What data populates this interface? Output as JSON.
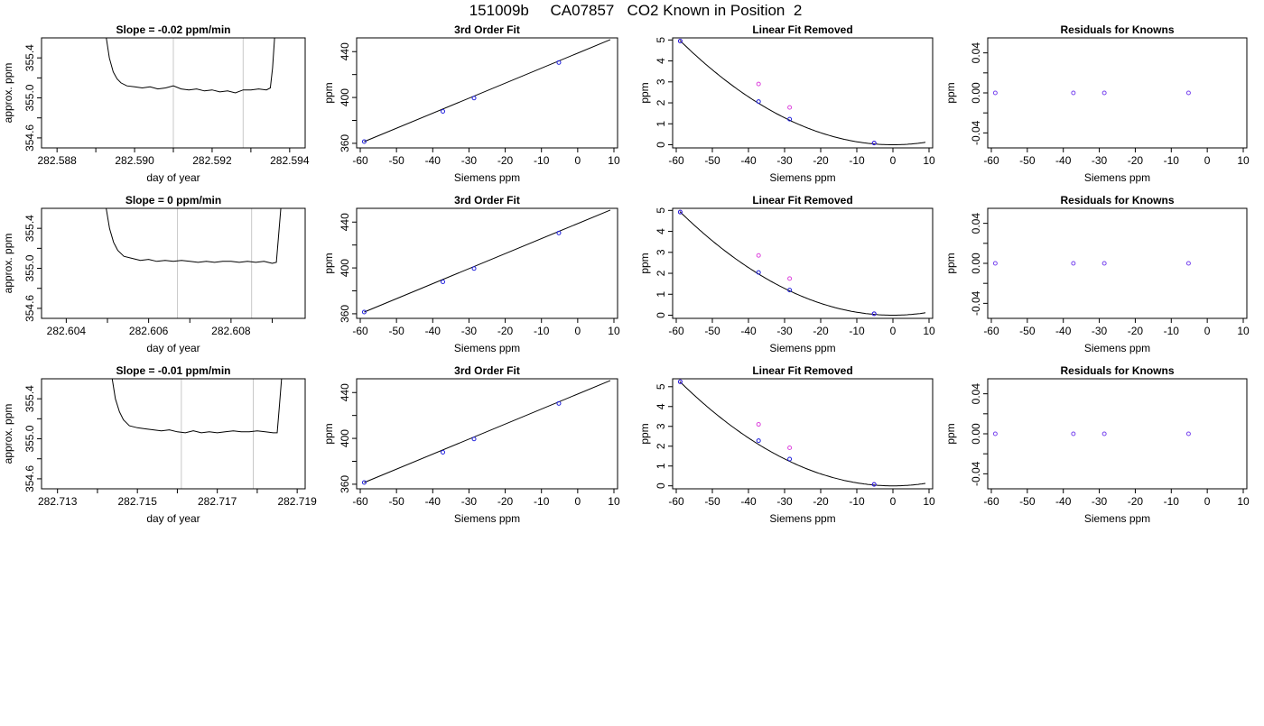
{
  "figure": {
    "title": "151009b     CA07857   CO2 Known in Position  2"
  },
  "style": {
    "axis_color": "#000000",
    "vline_color": "#c8c8c8",
    "point_blue": "#2222dd",
    "point_magenta": "#dd44dd"
  },
  "panel_titles": {
    "fit": "3rd Order Fit",
    "linear": "Linear Fit Removed",
    "resid": "Residuals for Knowns"
  },
  "axis_labels": {
    "trace_x": "day of year",
    "trace_y": "approx. ppm",
    "x_siemens": "Siemens ppm",
    "y_ppm": "ppm"
  },
  "rows": [
    {
      "slope_title": "Slope =  -0.02  ppm/min",
      "trace": {
        "xlim": [
          282.5876,
          282.5944
        ],
        "ylim": [
          354.5,
          355.6
        ],
        "x_ticks": [
          282.588,
          282.589,
          282.59,
          282.591,
          282.592,
          282.593,
          282.594
        ],
        "x_labels": [
          "282.588",
          "",
          "282.590",
          "",
          "282.592",
          "",
          "282.594"
        ],
        "y_ticks": [
          354.6,
          354.8,
          355.0,
          355.2,
          355.4
        ],
        "y_labels": [
          "354.6",
          "",
          "355.0",
          "",
          "355.4"
        ],
        "vlines": [
          282.591,
          282.5928
        ],
        "series": [
          [
            282.58925,
            355.65
          ],
          [
            282.58935,
            355.4
          ],
          [
            282.58945,
            355.26
          ],
          [
            282.58955,
            355.19
          ],
          [
            282.58965,
            355.15
          ],
          [
            282.5898,
            355.12
          ],
          [
            282.59,
            355.11
          ],
          [
            282.5902,
            355.1
          ],
          [
            282.5904,
            355.11
          ],
          [
            282.5906,
            355.09
          ],
          [
            282.5908,
            355.1
          ],
          [
            282.591,
            355.12
          ],
          [
            282.5912,
            355.09
          ],
          [
            282.5914,
            355.08
          ],
          [
            282.5916,
            355.09
          ],
          [
            282.5918,
            355.07
          ],
          [
            282.592,
            355.08
          ],
          [
            282.5922,
            355.06
          ],
          [
            282.5924,
            355.07
          ],
          [
            282.5926,
            355.05
          ],
          [
            282.5928,
            355.08
          ],
          [
            282.593,
            355.08
          ],
          [
            282.5932,
            355.09
          ],
          [
            282.5934,
            355.08
          ],
          [
            282.5935,
            355.1
          ],
          [
            282.59356,
            355.3
          ],
          [
            282.59362,
            355.65
          ]
        ]
      },
      "fit": {
        "points_x": [
          -58.9,
          -37.2,
          -28.6,
          -5.2
        ],
        "points_y": [
          361.5,
          387.9,
          399.5,
          430.5
        ],
        "line": [
          [
            -58.9,
            361.5
          ],
          [
            9.0,
            450.5
          ]
        ]
      },
      "linear": {
        "ylim": [
          -0.15,
          5.1
        ],
        "blue_x": [
          -58.9,
          -37.2,
          -28.6,
          -5.2
        ],
        "blue_y": [
          4.95,
          2.06,
          1.22,
          0.08
        ],
        "magenta_x": [
          -58.9,
          -37.2,
          -28.6,
          -5.2
        ],
        "magenta_y": [
          4.95,
          2.9,
          1.78,
          0.08
        ],
        "curve_a": 0.00143
      },
      "resid": {
        "points_x": [
          -58.9,
          -37.2,
          -28.6,
          -5.2
        ],
        "points_y": [
          0.0,
          0.0,
          0.0,
          0.0
        ]
      }
    },
    {
      "slope_title": "Slope =  0  ppm/min",
      "trace": {
        "xlim": [
          282.6034,
          282.6098
        ],
        "ylim": [
          354.5,
          355.6
        ],
        "x_ticks": [
          282.604,
          282.605,
          282.606,
          282.607,
          282.608,
          282.609
        ],
        "x_labels": [
          "282.604",
          "",
          "282.606",
          "",
          "282.608",
          ""
        ],
        "y_ticks": [
          354.6,
          354.8,
          355.0,
          355.2,
          355.4
        ],
        "y_labels": [
          "354.6",
          "",
          "355.0",
          "",
          "355.4"
        ],
        "vlines": [
          282.6067,
          282.6085
        ],
        "series": [
          [
            282.60495,
            355.65
          ],
          [
            282.60505,
            355.4
          ],
          [
            282.60515,
            355.26
          ],
          [
            282.60525,
            355.18
          ],
          [
            282.6054,
            355.12
          ],
          [
            282.6056,
            355.1
          ],
          [
            282.6058,
            355.08
          ],
          [
            282.606,
            355.09
          ],
          [
            282.6062,
            355.07
          ],
          [
            282.6064,
            355.08
          ],
          [
            282.6066,
            355.07
          ],
          [
            282.6068,
            355.08
          ],
          [
            282.607,
            355.07
          ],
          [
            282.6072,
            355.06
          ],
          [
            282.6074,
            355.07
          ],
          [
            282.6076,
            355.06
          ],
          [
            282.6078,
            355.07
          ],
          [
            282.608,
            355.07
          ],
          [
            282.6082,
            355.06
          ],
          [
            282.6084,
            355.07
          ],
          [
            282.6086,
            355.06
          ],
          [
            282.6088,
            355.07
          ],
          [
            282.609,
            355.05
          ],
          [
            282.6091,
            355.06
          ],
          [
            282.60915,
            355.3
          ],
          [
            282.60922,
            355.65
          ]
        ]
      },
      "fit": {
        "points_x": [
          -58.9,
          -37.2,
          -28.6,
          -5.2
        ],
        "points_y": [
          361.5,
          387.9,
          399.5,
          430.5
        ],
        "line": [
          [
            -58.9,
            361.5
          ],
          [
            9.0,
            450.5
          ]
        ]
      },
      "linear": {
        "ylim": [
          -0.15,
          5.1
        ],
        "blue_x": [
          -58.9,
          -37.2,
          -28.6,
          -5.2
        ],
        "blue_y": [
          4.92,
          2.04,
          1.2,
          0.07
        ],
        "magenta_x": [
          -58.9,
          -37.2,
          -28.6,
          -5.2
        ],
        "magenta_y": [
          4.92,
          2.85,
          1.75,
          0.07
        ],
        "curve_a": 0.00142
      },
      "resid": {
        "points_x": [
          -58.9,
          -37.2,
          -28.6,
          -5.2
        ],
        "points_y": [
          0.0,
          0.0,
          0.0,
          0.0
        ]
      }
    },
    {
      "slope_title": "Slope =  -0.01  ppm/min",
      "trace": {
        "xlim": [
          282.7126,
          282.7192
        ],
        "ylim": [
          354.5,
          355.6
        ],
        "x_ticks": [
          282.713,
          282.714,
          282.715,
          282.716,
          282.717,
          282.718,
          282.719
        ],
        "x_labels": [
          "282.713",
          "",
          "282.715",
          "",
          "282.717",
          "",
          "282.719"
        ],
        "y_ticks": [
          354.6,
          354.8,
          355.0,
          355.2,
          355.4
        ],
        "y_labels": [
          "354.6",
          "",
          "355.0",
          "",
          "355.4"
        ],
        "vlines": [
          282.7161,
          282.7179
        ],
        "series": [
          [
            282.71435,
            355.65
          ],
          [
            282.71445,
            355.4
          ],
          [
            282.71455,
            355.27
          ],
          [
            282.71465,
            355.19
          ],
          [
            282.7148,
            355.13
          ],
          [
            282.715,
            355.11
          ],
          [
            282.7152,
            355.1
          ],
          [
            282.7154,
            355.09
          ],
          [
            282.7156,
            355.08
          ],
          [
            282.7158,
            355.09
          ],
          [
            282.716,
            355.07
          ],
          [
            282.7162,
            355.06
          ],
          [
            282.7164,
            355.08
          ],
          [
            282.7166,
            355.06
          ],
          [
            282.7168,
            355.07
          ],
          [
            282.717,
            355.06
          ],
          [
            282.7172,
            355.07
          ],
          [
            282.7174,
            355.08
          ],
          [
            282.7176,
            355.07
          ],
          [
            282.7178,
            355.07
          ],
          [
            282.718,
            355.08
          ],
          [
            282.7182,
            355.07
          ],
          [
            282.7184,
            355.06
          ],
          [
            282.7185,
            355.06
          ],
          [
            282.71855,
            355.3
          ],
          [
            282.71862,
            355.65
          ]
        ]
      },
      "fit": {
        "points_x": [
          -58.9,
          -37.2,
          -28.6,
          -5.2
        ],
        "points_y": [
          361.5,
          387.9,
          399.5,
          430.5
        ],
        "line": [
          [
            -58.9,
            361.5
          ],
          [
            9.0,
            450.5
          ]
        ]
      },
      "linear": {
        "ylim": [
          -0.15,
          5.4
        ],
        "blue_x": [
          -58.9,
          -37.2,
          -28.6,
          -5.2
        ],
        "blue_y": [
          5.25,
          2.28,
          1.35,
          0.07
        ],
        "magenta_x": [
          -58.9,
          -37.2,
          -28.6,
          -5.2
        ],
        "magenta_y": [
          5.25,
          3.1,
          1.92,
          0.07
        ],
        "curve_a": 0.00151
      },
      "resid": {
        "points_x": [
          -58.9,
          -37.2,
          -28.6,
          -5.2
        ],
        "points_y": [
          0.0,
          0.0,
          0.0,
          0.0
        ]
      }
    }
  ],
  "chart_data": [
    {
      "type": "line",
      "panel": "drift trace (3 rows)",
      "xlabel": "day of year",
      "ylabel": "approx. ppm",
      "ylim": [
        354.5,
        355.6
      ],
      "titles": [
        "Slope =  -0.02  ppm/min",
        "Slope =  0  ppm/min",
        "Slope =  -0.01  ppm/min"
      ],
      "grid": false
    },
    {
      "type": "scatter",
      "panel": "3rd Order Fit (3 rows)",
      "title": "3rd Order Fit",
      "xlabel": "Siemens ppm",
      "ylabel": "ppm",
      "xlim": [
        -61,
        11
      ],
      "ylim": [
        356,
        452
      ],
      "x": [
        -58.9,
        -37.2,
        -28.6,
        -5.2
      ],
      "y": [
        361.5,
        387.9,
        399.5,
        430.5
      ]
    },
    {
      "type": "scatter",
      "panel": "Linear Fit Removed (3 rows)",
      "title": "Linear Fit Removed",
      "xlabel": "Siemens ppm",
      "ylabel": "ppm",
      "xlim": [
        -61,
        11
      ],
      "x": [
        -58.9,
        -37.2,
        -28.6,
        -5.2
      ]
    },
    {
      "type": "scatter",
      "panel": "Residuals for Knowns (3 rows)",
      "title": "Residuals for Knowns",
      "xlabel": "Siemens ppm",
      "ylabel": "ppm",
      "xlim": [
        -61,
        11
      ],
      "ylim": [
        -0.055,
        0.055
      ],
      "x": [
        -58.9,
        -37.2,
        -28.6,
        -5.2
      ],
      "y": [
        0,
        0,
        0,
        0
      ]
    }
  ]
}
